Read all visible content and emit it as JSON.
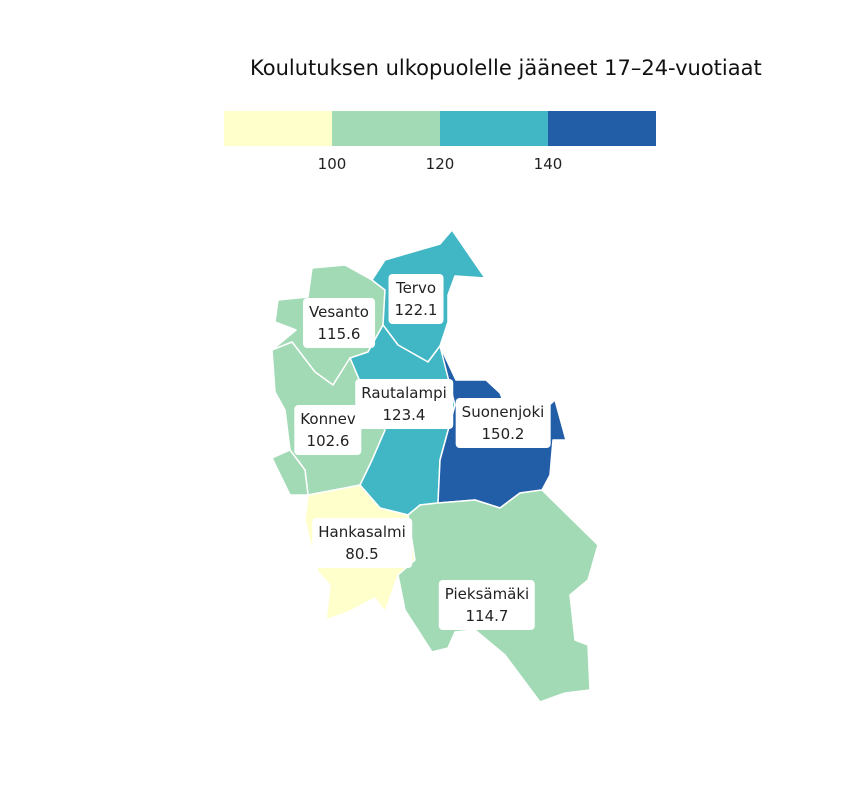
{
  "title": "Koulutuksen ulkopuolelle jääneet 17–24-vuotiaat",
  "legend": {
    "colors": [
      "#ffffcc",
      "#a1dab4",
      "#41b6c4",
      "#225ea8"
    ],
    "ticks": [
      "100",
      "120",
      "140"
    ]
  },
  "regions": [
    {
      "id": "vesanto",
      "name": "Vesanto",
      "value": "115.6",
      "color": "#a1dab4"
    },
    {
      "id": "tervo",
      "name": "Tervo",
      "value": "122.1",
      "color": "#41b6c4"
    },
    {
      "id": "rautalampi",
      "name": "Rautalampi",
      "value": "123.4",
      "color": "#41b6c4"
    },
    {
      "id": "suonenjoki",
      "name": "Suonenjoki",
      "value": "150.2",
      "color": "#225ea8"
    },
    {
      "id": "konnev",
      "name": "Konnev",
      "value": "102.6",
      "color": "#a1dab4"
    },
    {
      "id": "hankasalmi",
      "name": "Hankasalmi",
      "value": "80.5",
      "color": "#ffffcc"
    },
    {
      "id": "pieksamaki",
      "name": "Pieksämäki",
      "value": "114.7",
      "color": "#a1dab4"
    }
  ]
}
